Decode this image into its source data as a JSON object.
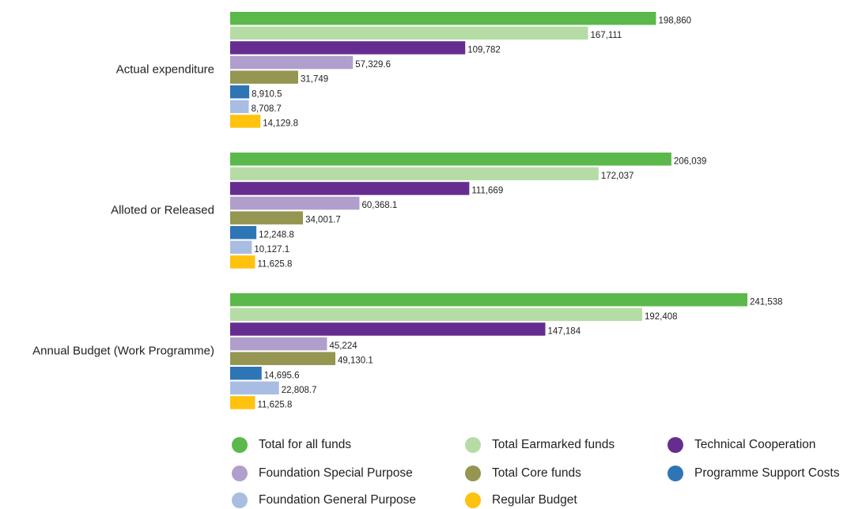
{
  "chart_data": {
    "type": "hbar",
    "categories": [
      "Actual expenditure",
      "Alloted or Released",
      "Annual Budget (Work Programme)"
    ],
    "series": [
      {
        "name": "Total for all funds",
        "color": "#5ab94a",
        "values": [
          198860,
          206039,
          241538
        ],
        "value_labels": [
          "198,860",
          "206,039",
          "241,538"
        ]
      },
      {
        "name": "Total Earmarked funds",
        "color": "#b6dca6",
        "values": [
          167111,
          172037,
          192408
        ],
        "value_labels": [
          "167,111",
          "172,037",
          "192,408"
        ]
      },
      {
        "name": "Technical Cooperation",
        "color": "#662d91",
        "values": [
          109782,
          111669,
          147184
        ],
        "value_labels": [
          "109,782",
          "111,669",
          "147,184"
        ]
      },
      {
        "name": "Foundation Special Purpose",
        "color": "#b09fcc",
        "values": [
          57329.6,
          60368.1,
          45224
        ],
        "value_labels": [
          "57,329.6",
          "60,368.1",
          "45,224"
        ]
      },
      {
        "name": "Total Core funds",
        "color": "#949651",
        "values": [
          31749,
          34001.7,
          49130.1
        ],
        "value_labels": [
          "31,749",
          "34,001.7",
          "49,130.1"
        ]
      },
      {
        "name": "Programme Support Costs",
        "color": "#2e75b6",
        "values": [
          8910.5,
          12248.8,
          14695.6
        ],
        "value_labels": [
          "8,910.5",
          "12,248.8",
          "14,695.6"
        ]
      },
      {
        "name": "Foundation General Purpose",
        "color": "#a9bde3",
        "values": [
          8708.7,
          10127.1,
          22808.7
        ],
        "value_labels": [
          "8,708.7",
          "10,127.1",
          "22,808.7"
        ]
      },
      {
        "name": "Regular Budget",
        "color": "#ffc20e",
        "values": [
          14129.8,
          11625.8,
          11625.8
        ],
        "value_labels": [
          "14,129.8",
          "11,625.8",
          "11,625.8"
        ]
      }
    ]
  }
}
